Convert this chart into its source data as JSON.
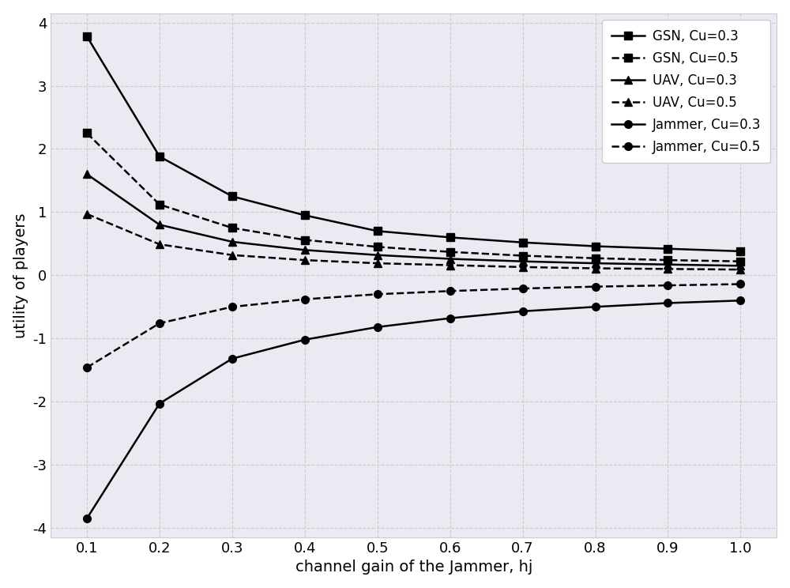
{
  "x": [
    0.1,
    0.2,
    0.3,
    0.4,
    0.5,
    0.6,
    0.7,
    0.8,
    0.9,
    1.0
  ],
  "GSN_03": [
    3.78,
    1.88,
    1.25,
    0.95,
    0.7,
    0.6,
    0.52,
    0.46,
    0.42,
    0.38
  ],
  "GSN_05": [
    2.25,
    1.12,
    0.75,
    0.56,
    0.45,
    0.37,
    0.31,
    0.27,
    0.24,
    0.22
  ],
  "UAV_03": [
    1.6,
    0.8,
    0.53,
    0.4,
    0.32,
    0.26,
    0.22,
    0.19,
    0.17,
    0.15
  ],
  "UAV_05": [
    0.97,
    0.49,
    0.32,
    0.24,
    0.19,
    0.16,
    0.13,
    0.11,
    0.1,
    0.09
  ],
  "Jammer_03": [
    -3.85,
    -2.03,
    -1.32,
    -1.02,
    -0.82,
    -0.68,
    -0.57,
    -0.5,
    -0.44,
    -0.4
  ],
  "Jammer_05": [
    -1.46,
    -0.76,
    -0.5,
    -0.38,
    -0.3,
    -0.25,
    -0.21,
    -0.18,
    -0.16,
    -0.14
  ],
  "xlabel": "channel gain of the Jammer, hj",
  "ylabel": "utility of players",
  "ylim": [
    -4.15,
    4.15
  ],
  "xlim": [
    0.05,
    1.05
  ],
  "yticks": [
    -4,
    -3,
    -2,
    -1,
    0,
    1,
    2,
    3,
    4
  ],
  "xticks": [
    0.1,
    0.2,
    0.3,
    0.4,
    0.5,
    0.6,
    0.7,
    0.8,
    0.9,
    1.0
  ],
  "line_color": "#000000",
  "bg_color": "#eaeaf2",
  "legend_labels": [
    "GSN, Cu=0.3",
    "GSN, Cu=0.5",
    "UAV, Cu=0.3",
    "UAV, Cu=0.5",
    "Jammer, Cu=0.3",
    "Jammer, Cu=0.5"
  ],
  "figsize": [
    10.0,
    7.44
  ],
  "dpi": 100
}
